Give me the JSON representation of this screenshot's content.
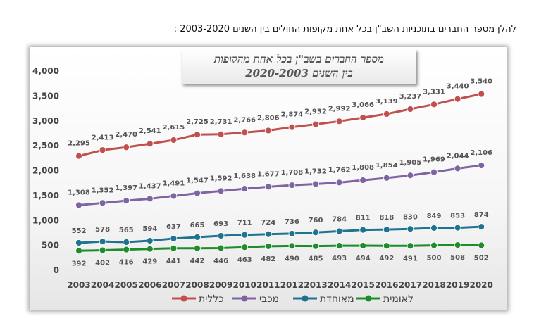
{
  "heading": "להלן מספר החברים בתוכניות השב\"ן בכל אחת מקופות החולים בין השנים 2003-2020 :",
  "chart_data": {
    "type": "line",
    "title_line1": "מספר החברים בשב\"ן בכל אחת מהקופות",
    "title_line2": "בין השנים 2020-2003",
    "x": [
      "2003",
      "2004",
      "2005",
      "2006",
      "2007",
      "2008",
      "2009",
      "2010",
      "2011",
      "2012",
      "2013",
      "2014",
      "2015",
      "2016",
      "2017",
      "2018",
      "2019",
      "2020"
    ],
    "y_ticks": [
      "0",
      "500",
      "1,000",
      "1,500",
      "2,000",
      "2,500",
      "3,000",
      "3,500",
      "4,000"
    ],
    "ylim": [
      0,
      4000
    ],
    "grid": false,
    "legend_position": "bottom",
    "series": [
      {
        "name": "כללית",
        "color": "#c0504d",
        "values": [
          2295,
          2413,
          2470,
          2541,
          2615,
          2725,
          2731,
          2766,
          2806,
          2874,
          2932,
          2992,
          3066,
          3139,
          3237,
          3331,
          3440,
          3540
        ],
        "labels": [
          "2,295",
          "2,413",
          "2,470",
          "2,541",
          "2,615",
          "2,725",
          "2,731",
          "2,766",
          "2,806",
          "2,874",
          "2,932",
          "2,992",
          "3,066",
          "3,139",
          "3,237",
          "3,331",
          "3,440",
          "3,540"
        ]
      },
      {
        "name": "מכבי",
        "color": "#8064a2",
        "values": [
          1308,
          1352,
          1397,
          1437,
          1491,
          1547,
          1592,
          1638,
          1677,
          1708,
          1732,
          1762,
          1808,
          1854,
          1905,
          1969,
          2044,
          2106
        ],
        "labels": [
          "1,308",
          "1,352",
          "1,397",
          "1,437",
          "1,491",
          "1,547",
          "1,592",
          "1,638",
          "1,677",
          "1,708",
          "1,732",
          "1,762",
          "1,808",
          "1,854",
          "1,905",
          "1,969",
          "2,044",
          "2,106"
        ]
      },
      {
        "name": "מאוחדת",
        "color": "#1f7391",
        "values": [
          552,
          578,
          565,
          594,
          637,
          665,
          693,
          711,
          724,
          736,
          760,
          784,
          811,
          818,
          830,
          849,
          853,
          874
        ],
        "labels": [
          "552",
          "578",
          "565",
          "594",
          "637",
          "665",
          "693",
          "711",
          "724",
          "736",
          "760",
          "784",
          "811",
          "818",
          "830",
          "849",
          "853",
          "874"
        ]
      },
      {
        "name": "לאומית",
        "color": "#1e8c2a",
        "values": [
          392,
          402,
          416,
          429,
          441,
          442,
          446,
          463,
          482,
          490,
          485,
          493,
          494,
          492,
          491,
          500,
          508,
          502
        ],
        "labels": [
          "392",
          "402",
          "416",
          "429",
          "441",
          "442",
          "446",
          "463",
          "482",
          "490",
          "485",
          "493",
          "494",
          "492",
          "491",
          "500",
          "508",
          "502"
        ]
      }
    ]
  }
}
